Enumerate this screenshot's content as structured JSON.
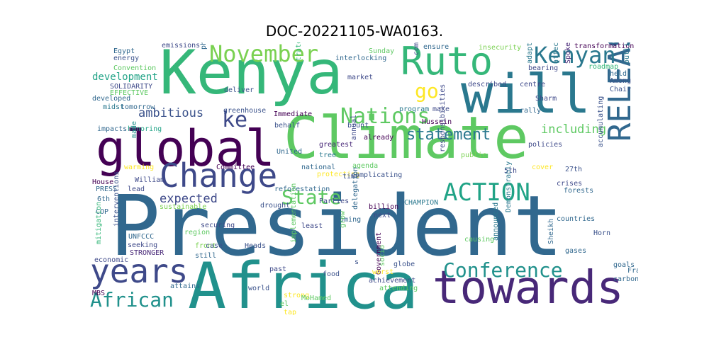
{
  "title": "DOC-20221105-WA0163.",
  "words": [
    {
      "text": "President",
      "color": "#31688e"
    },
    {
      "text": "Climate",
      "color": "#5ec962"
    },
    {
      "text": "Africa",
      "color": "#21918c"
    },
    {
      "text": "Kenya",
      "color": "#35b779"
    },
    {
      "text": "will",
      "color": "#2a788e"
    },
    {
      "text": "global",
      "color": "#440154"
    },
    {
      "text": "towards",
      "color": "#482878"
    },
    {
      "text": "Ruto",
      "color": "#35b779"
    },
    {
      "text": "years",
      "color": "#3e4989"
    },
    {
      "text": "Change",
      "color": "#3e4989"
    },
    {
      "text": "RELEASE",
      "color": "#31688e"
    },
    {
      "text": "ACTION",
      "color": "#20a386"
    },
    {
      "text": "November",
      "color": "#7ad151"
    },
    {
      "text": "Kenyan",
      "color": "#2a788e"
    },
    {
      "text": "Nations",
      "color": "#5ec962"
    },
    {
      "text": "Conference",
      "color": "#21918c"
    },
    {
      "text": "African",
      "color": "#21918c"
    },
    {
      "text": "State",
      "color": "#5ec962"
    },
    {
      "text": "go",
      "color": "#fde725"
    },
    {
      "text": "ke",
      "color": "#3e4989"
    },
    {
      "text": "statement",
      "color": "#2a788e"
    },
    {
      "text": "ambitious",
      "color": "#3b528b"
    },
    {
      "text": "including",
      "color": "#5ec962"
    },
    {
      "text": "expected",
      "color": "#3e4989"
    },
    {
      "text": "development",
      "color": "#20a386"
    },
    {
      "text": "Egypt",
      "color": "#31688e"
    },
    {
      "text": "energy",
      "color": "#3b528b"
    },
    {
      "text": "emissions",
      "color": "#3e4989"
    },
    {
      "text": "Convention",
      "color": "#5ec962"
    },
    {
      "text": "SOLIDARITY",
      "color": "#3e4989"
    },
    {
      "text": "EFFECTIVE",
      "color": "#5ec962"
    },
    {
      "text": "developed",
      "color": "#31688e"
    },
    {
      "text": "midst",
      "color": "#2a788e"
    },
    {
      "text": "tomorrow",
      "color": "#31688e"
    },
    {
      "text": "impacts",
      "color": "#31688e"
    },
    {
      "text": "honoring",
      "color": "#20a386"
    },
    {
      "text": "greenhouse",
      "color": "#3b528b"
    },
    {
      "text": "Immediate",
      "color": "#440154"
    },
    {
      "text": "deliver",
      "color": "#3b528b"
    },
    {
      "text": "phenomenon",
      "color": "#31688e"
    },
    {
      "text": "strategies",
      "color": "#35b779"
    },
    {
      "text": "interlocking",
      "color": "#31688e"
    },
    {
      "text": "Sunday",
      "color": "#5ec962"
    },
    {
      "text": "ensure",
      "color": "#31688e"
    },
    {
      "text": "insecurity",
      "color": "#7ad151"
    },
    {
      "text": "transformation",
      "color": "#440154"
    },
    {
      "text": "roadmap",
      "color": "#35b779"
    },
    {
      "text": "bearing",
      "color": "#3e4989"
    },
    {
      "text": "held",
      "color": "#31688e"
    },
    {
      "text": "Among",
      "color": "#3b528b"
    },
    {
      "text": "Chair",
      "color": "#3b528b"
    },
    {
      "text": "market",
      "color": "#3e4989"
    },
    {
      "text": "commitments",
      "color": "#3e4989"
    },
    {
      "text": "described",
      "color": "#3e4989"
    },
    {
      "text": "centre",
      "color": "#3e4989"
    },
    {
      "text": "Sharm",
      "color": "#3e4989"
    },
    {
      "text": "affecting",
      "color": "#2a788e"
    },
    {
      "text": "Spokesperson",
      "color": "#482878"
    },
    {
      "text": "outlining",
      "color": "#2a788e"
    },
    {
      "text": "adaptation",
      "color": "#2a788e"
    },
    {
      "text": "rally",
      "color": "#31688e"
    },
    {
      "text": "make",
      "color": "#3e4989"
    },
    {
      "text": "program",
      "color": "#2a788e"
    },
    {
      "text": "Hussein",
      "color": "#440154"
    },
    {
      "text": "behalf",
      "color": "#3b528b"
    },
    {
      "text": "brunt",
      "color": "#3b528b"
    },
    {
      "text": "already",
      "color": "#440154"
    },
    {
      "text": "policies",
      "color": "#3e4989"
    },
    {
      "text": "greatest",
      "color": "#482878"
    },
    {
      "text": "annual",
      "color": "#3e4989"
    },
    {
      "text": "United",
      "color": "#31688e"
    },
    {
      "text": "made",
      "color": "#21918c"
    },
    {
      "text": "tree",
      "color": "#2a788e"
    },
    {
      "text": "agenda",
      "color": "#5ec962"
    },
    {
      "text": "national",
      "color": "#31688e"
    },
    {
      "text": "protecting",
      "color": "#fde725"
    },
    {
      "text": "time",
      "color": "#3b528b"
    },
    {
      "text": "public",
      "color": "#7ad151"
    },
    {
      "text": "responsibilities",
      "color": "#3e4989"
    },
    {
      "text": "5th",
      "color": "#3e4989"
    },
    {
      "text": "cover",
      "color": "#fde725"
    },
    {
      "text": "27th",
      "color": "#3b528b"
    },
    {
      "text": "accumulating",
      "color": "#3b528b"
    },
    {
      "text": "warming",
      "color": "#fde725"
    },
    {
      "text": "Committee",
      "color": "#440154"
    },
    {
      "text": "William",
      "color": "#3e4989"
    },
    {
      "text": "House",
      "color": "#440154"
    },
    {
      "text": "PRESS",
      "color": "#31688e"
    },
    {
      "text": "lead",
      "color": "#3e4989"
    },
    {
      "text": "6th",
      "color": "#31688e"
    },
    {
      "text": "sustainable",
      "color": "#7ad151"
    },
    {
      "text": "COP",
      "color": "#31688e"
    },
    {
      "text": "mitigation",
      "color": "#35b779"
    },
    {
      "text": "reforestation",
      "color": "#31688e"
    },
    {
      "text": "complicating",
      "color": "#3b528b"
    },
    {
      "text": "crises",
      "color": "#3e4989"
    },
    {
      "text": "forests",
      "color": "#31688e"
    },
    {
      "text": "drought",
      "color": "#3b528b"
    },
    {
      "text": "Parties",
      "color": "#3e4989"
    },
    {
      "text": "CHAMPION",
      "color": "#2a788e"
    },
    {
      "text": "billion",
      "color": "#440154"
    },
    {
      "text": "next",
      "color": "#3e4989"
    },
    {
      "text": "Demonstrably",
      "color": "#2a788e"
    },
    {
      "text": "countries",
      "color": "#31688e"
    },
    {
      "text": "Horn",
      "color": "#3b528b"
    },
    {
      "text": "Coming",
      "color": "#31688e"
    },
    {
      "text": "securing",
      "color": "#3e4989"
    },
    {
      "text": "least",
      "color": "#3e4989"
    },
    {
      "text": "UNFCCC",
      "color": "#31688e"
    },
    {
      "text": "seeking",
      "color": "#3e4989"
    },
    {
      "text": "interventions",
      "color": "#3b528b"
    },
    {
      "text": "STRONGER",
      "color": "#482878"
    },
    {
      "text": "region",
      "color": "#5ec962"
    },
    {
      "text": "front",
      "color": "#7ad151"
    },
    {
      "text": "case",
      "color": "#3b528b"
    },
    {
      "text": "economic",
      "color": "#3e4989"
    },
    {
      "text": "still",
      "color": "#31688e"
    },
    {
      "text": "Heads",
      "color": "#3b528b"
    },
    {
      "text": "implementation",
      "color": "#5ec962"
    },
    {
      "text": "grow",
      "color": "#5ec962"
    },
    {
      "text": "delegation",
      "color": "#31688e"
    },
    {
      "text": "causing",
      "color": "#5ec962"
    },
    {
      "text": "announced",
      "color": "#2a788e"
    },
    {
      "text": "Sheikh",
      "color": "#31688e"
    },
    {
      "text": "gases",
      "color": "#31688e"
    },
    {
      "text": "goals",
      "color": "#31688e"
    },
    {
      "text": "carbon",
      "color": "#31688e"
    },
    {
      "text": "Framework",
      "color": "#31688e"
    },
    {
      "text": "past",
      "color": "#3e4989"
    },
    {
      "text": "food",
      "color": "#3b528b"
    },
    {
      "text": "s",
      "color": "#3b528b"
    },
    {
      "text": "Government",
      "color": "#440154"
    },
    {
      "text": "achievement",
      "color": "#3e4989"
    },
    {
      "text": "socio",
      "color": "#5ec962"
    },
    {
      "text": "globe",
      "color": "#3b528b"
    },
    {
      "text": "worst",
      "color": "#fde725"
    },
    {
      "text": "attending",
      "color": "#5ec962"
    },
    {
      "text": "MBS",
      "color": "#440154"
    },
    {
      "text": "attains",
      "color": "#31688e"
    },
    {
      "text": "world",
      "color": "#3b528b"
    },
    {
      "text": "strong",
      "color": "#fde725"
    },
    {
      "text": "MoHamed",
      "color": "#5ec962"
    },
    {
      "text": "el",
      "color": "#5ec962"
    },
    {
      "text": "tap",
      "color": "#fde725"
    }
  ]
}
